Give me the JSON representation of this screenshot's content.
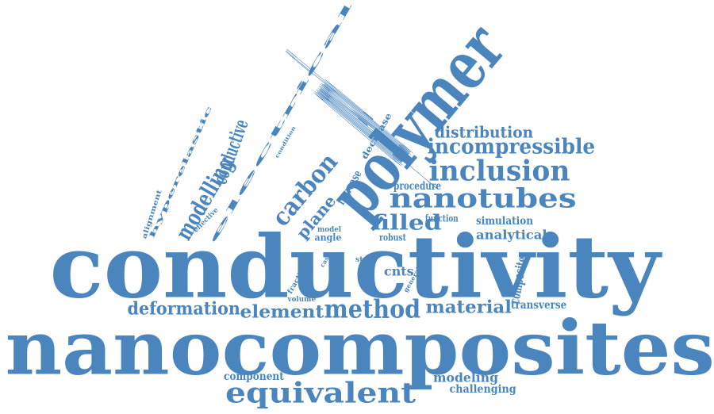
{
  "color": "#4a86bd",
  "words": [
    "conductivity",
    "nanocomposites",
    "polymer",
    "electrical",
    "compressible",
    "incompressible",
    "inclusion",
    "nanotubes",
    "distribution",
    "carbon",
    "plane",
    "filled",
    "equivalent",
    "method",
    "element",
    "deformation",
    "material",
    "hyperelastic",
    "modelling",
    "conductive",
    "condition",
    "decrease",
    "increase",
    "procedure",
    "function",
    "simulation",
    "analytical",
    "alignment",
    "effective",
    "model",
    "angle",
    "robust",
    "fraction",
    "case",
    "str",
    "cnts",
    "general",
    "volume",
    "composite",
    "transverse",
    "component",
    "modeling",
    "challenging"
  ]
}
